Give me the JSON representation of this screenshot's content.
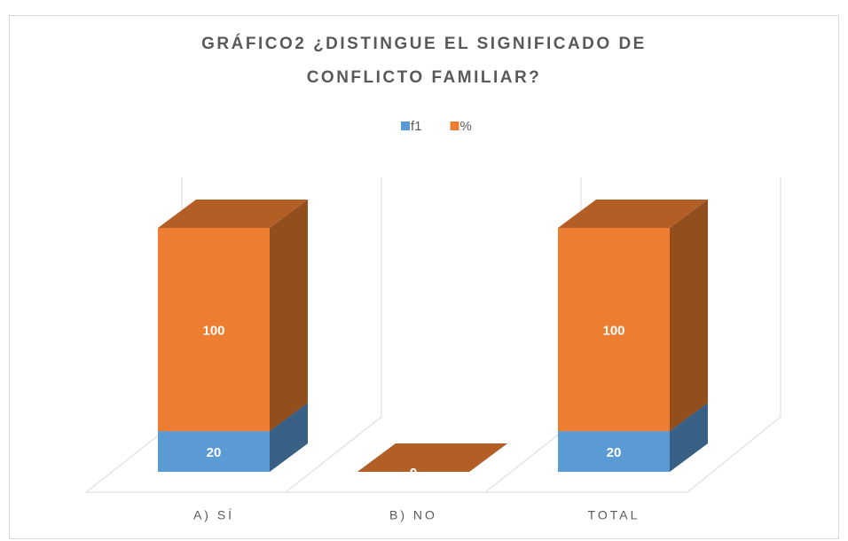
{
  "chart_data": {
    "type": "bar3d_stacked",
    "title": [
      "GRÁFICO2 ¿DISTINGUE EL SIGNIFICADO DE",
      "CONFLICTO FAMILIAR?"
    ],
    "categories": [
      "A) SÍ",
      "B) NO",
      "TOTAL"
    ],
    "series": [
      {
        "name": "f1",
        "color": "#5b9bd5",
        "values": [
          20,
          0,
          20
        ]
      },
      {
        "name": "%",
        "color": "#ed7d31",
        "values": [
          100,
          0,
          100
        ]
      }
    ],
    "legend": "top"
  }
}
